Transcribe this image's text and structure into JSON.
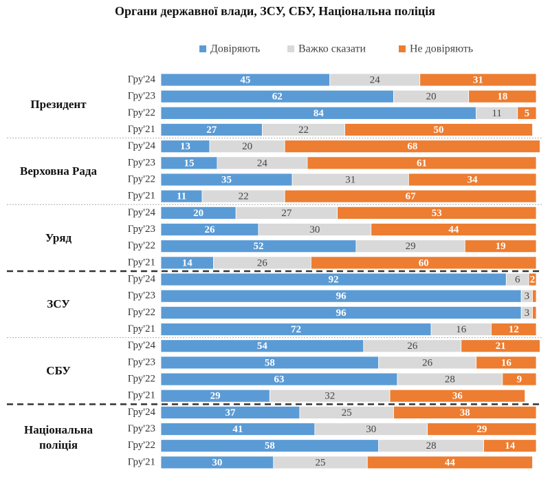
{
  "chart_data": {
    "type": "bar",
    "stacked": true,
    "orientation": "horizontal",
    "title": "Органи державної влади, ЗСУ, СБУ, Національна поліція",
    "series": [
      {
        "name": "Довіряють",
        "color": "#5b9bd5"
      },
      {
        "name": "Важко сказати",
        "color": "#d9d9d9"
      },
      {
        "name": "Не  довіряють",
        "color": "#ed7d31"
      }
    ],
    "groups": [
      {
        "name": "Президент",
        "categories": [
          "Гру'24",
          "Гру'23",
          "Гру'22",
          "Гру'21"
        ],
        "values": [
          [
            45,
            24,
            31
          ],
          [
            62,
            20,
            18
          ],
          [
            84,
            11,
            5
          ],
          [
            27,
            22,
            50
          ]
        ]
      },
      {
        "name": "Верховна Рада",
        "categories": [
          "Гру'24",
          "Гру'23",
          "Гру'22",
          "Гру'21"
        ],
        "values": [
          [
            13,
            20,
            68
          ],
          [
            15,
            24,
            61
          ],
          [
            35,
            31,
            34
          ],
          [
            11,
            22,
            67
          ]
        ]
      },
      {
        "name": "Уряд",
        "categories": [
          "Гру'24",
          "Гру'23",
          "Гру'22",
          "Гру'21"
        ],
        "values": [
          [
            20,
            27,
            53
          ],
          [
            26,
            30,
            44
          ],
          [
            52,
            29,
            19
          ],
          [
            14,
            26,
            60
          ]
        ]
      },
      {
        "name": "ЗСУ",
        "categories": [
          "Гру'24",
          "Гру'23",
          "Гру'22",
          "Гру'21"
        ],
        "values": [
          [
            92,
            6,
            2
          ],
          [
            96,
            3,
            1
          ],
          [
            96,
            3,
            1
          ],
          [
            72,
            16,
            12
          ]
        ]
      },
      {
        "name": "СБУ",
        "categories": [
          "Гру'24",
          "Гру'23",
          "Гру'22",
          "Гру'21"
        ],
        "values": [
          [
            54,
            26,
            21
          ],
          [
            58,
            26,
            16
          ],
          [
            63,
            28,
            9
          ],
          [
            29,
            32,
            36
          ]
        ]
      },
      {
        "name": "Національна поліція",
        "categories": [
          "Гру'24",
          "Гру'23",
          "Гру'22",
          "Гру'21"
        ],
        "values": [
          [
            37,
            25,
            38
          ],
          [
            41,
            30,
            29
          ],
          [
            58,
            28,
            14
          ],
          [
            30,
            25,
            44
          ]
        ]
      }
    ]
  }
}
